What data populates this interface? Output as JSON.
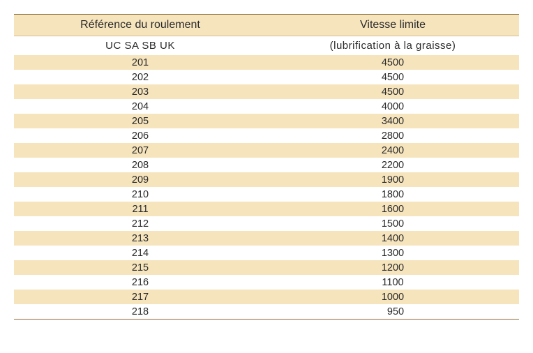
{
  "table": {
    "header1": {
      "col0": "Référence du roulement",
      "col1": "Vitesse limite"
    },
    "header2": {
      "col0": "UC  SA  SB  UK",
      "col1": "(lubrification à la graisse)"
    },
    "columns": [
      "Référence du roulement",
      "Vitesse limite"
    ],
    "subheader": [
      "UC  SA  SB  UK",
      "(lubrification à la graisse)"
    ],
    "rows": [
      {
        "ref": "201",
        "speed": "4500"
      },
      {
        "ref": "202",
        "speed": "4500"
      },
      {
        "ref": "203",
        "speed": "4500"
      },
      {
        "ref": "204",
        "speed": "4000"
      },
      {
        "ref": "205",
        "speed": "3400"
      },
      {
        "ref": "206",
        "speed": "2800"
      },
      {
        "ref": "207",
        "speed": "2400"
      },
      {
        "ref": "208",
        "speed": "2200"
      },
      {
        "ref": "209",
        "speed": "1900"
      },
      {
        "ref": "210",
        "speed": "1800"
      },
      {
        "ref": "211",
        "speed": "1600"
      },
      {
        "ref": "212",
        "speed": "1500"
      },
      {
        "ref": "213",
        "speed": "1400"
      },
      {
        "ref": "214",
        "speed": "1300"
      },
      {
        "ref": "215",
        "speed": "1200"
      },
      {
        "ref": "216",
        "speed": "1100"
      },
      {
        "ref": "217",
        "speed": "1000"
      },
      {
        "ref": "218",
        "speed": "  950"
      }
    ],
    "colors": {
      "stripe_odd": "#f6e4bd",
      "stripe_even": "#ffffff",
      "border": "#8a6d3b",
      "text": "#2a2a2a"
    },
    "font_size_header": 16,
    "font_size_data": 14.5
  }
}
